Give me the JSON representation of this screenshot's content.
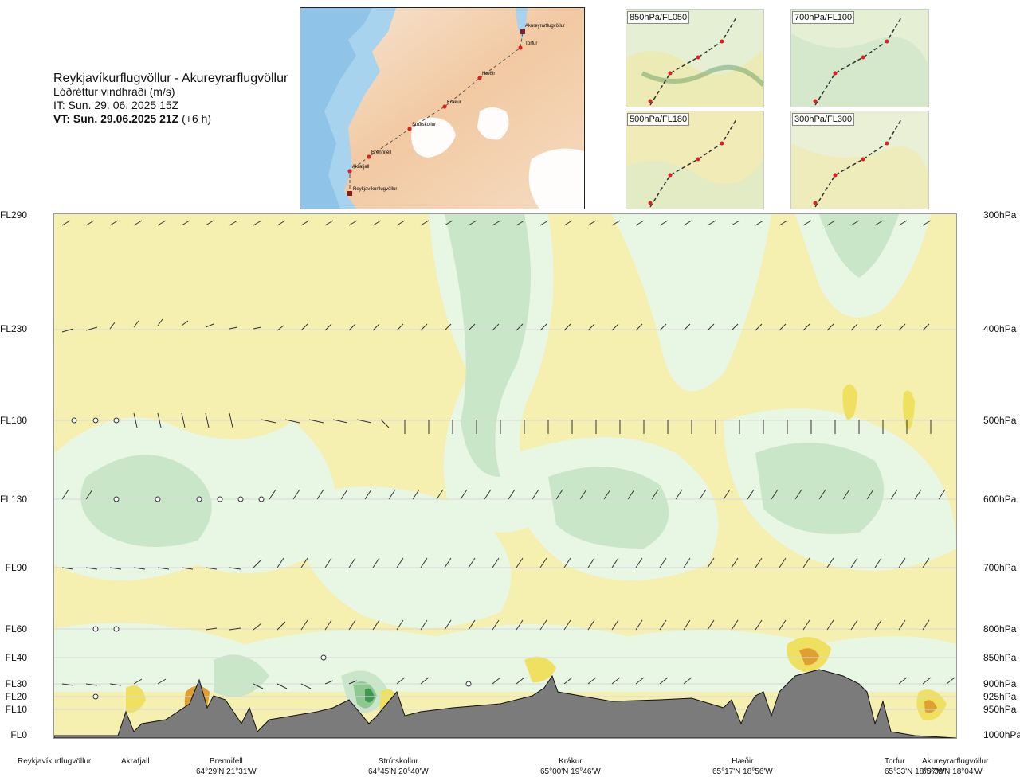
{
  "title": {
    "route": "Reykjavíkurflugvöllur - Akureyrarflugvöllur",
    "parameter": "Lóðréttur vindhraði (m/s)",
    "issue_time": "IT: Sun. 29. 06. 2025 15Z",
    "valid_time": "VT: Sun. 29.06.2025 21Z",
    "valid_offset": "(+6 h)"
  },
  "overview_map": {
    "waypoints": [
      "Akureyrarflugvöllur",
      "Torfur",
      "Hæðir",
      "Krákur",
      "Strútskollur",
      "Brennifell",
      "Akrafjall",
      "Reykjavíkurflugvöllur"
    ]
  },
  "panels": [
    {
      "label": "850hPa/FL050"
    },
    {
      "label": "700hPa/FL100"
    },
    {
      "label": "500hPa/FL180"
    },
    {
      "label": "300hPa/FL300"
    }
  ],
  "flight_levels": [
    "FL290",
    "FL230",
    "FL180",
    "FL130",
    "FL90",
    "FL60",
    "FL40",
    "FL30",
    "FL20",
    "FL10",
    "FL0"
  ],
  "pressure_levels": [
    "300hPa",
    "400hPa",
    "500hPa",
    "600hPa",
    "700hPa",
    "800hPa",
    "850hPa",
    "900hPa",
    "925hPa",
    "950hPa",
    "1000hPa"
  ],
  "locations": [
    {
      "name": "Reykjavíkurflugvöllur",
      "coord": ""
    },
    {
      "name": "Akrafjall",
      "coord": ""
    },
    {
      "name": "Brennifell",
      "coord": "64°29'N 21°31'W"
    },
    {
      "name": "Strútskollur",
      "coord": "64°45'N 20°40'W"
    },
    {
      "name": "Krákur",
      "coord": "65°00'N 19°46'W"
    },
    {
      "name": "Hæðir",
      "coord": "65°17'N 18°56'W"
    },
    {
      "name": "Torfur",
      "coord": "65°33'N 18°07'W"
    },
    {
      "name": "Akureyrarflugvöllur",
      "coord": "65°39'N 18°04'W"
    }
  ],
  "colors": {
    "sinking_weak": "#f5efb0",
    "sinking_moderate": "#f0e060",
    "rising_weak": "#e8f6e4",
    "rising_moderate": "#c9e6c8",
    "rising_strong": "#8cc890",
    "strong_down": "#e0a030",
    "terrain": "#7b7b7b",
    "route_point": "#e02020"
  }
}
